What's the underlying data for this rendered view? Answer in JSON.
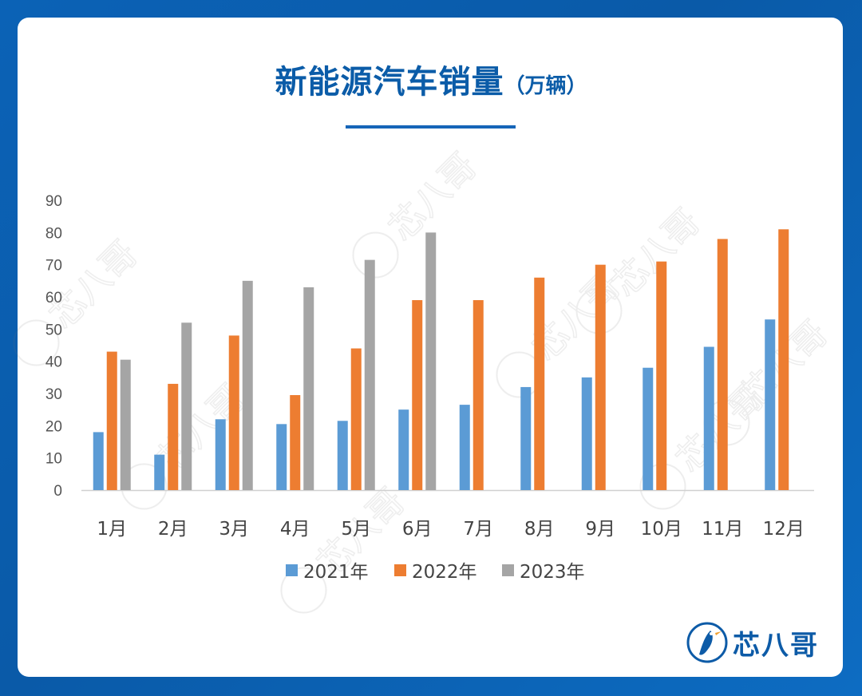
{
  "chart_data": {
    "type": "bar",
    "title": "新能源汽车销量",
    "subtitle": "（万辆）",
    "categories": [
      "1月",
      "2月",
      "3月",
      "4月",
      "5月",
      "6月",
      "7月",
      "8月",
      "9月",
      "10月",
      "11月",
      "12月"
    ],
    "series": [
      {
        "name": "2021年",
        "color": "#5b9bd5",
        "values": [
          18,
          11,
          22,
          20.5,
          21.5,
          25,
          26.5,
          32,
          35,
          38,
          44.5,
          53
        ]
      },
      {
        "name": "2022年",
        "color": "#ed7d31",
        "values": [
          43,
          33,
          48,
          29.5,
          44,
          59,
          59,
          66,
          70,
          71,
          78,
          81
        ]
      },
      {
        "name": "2023年",
        "color": "#a5a5a5",
        "values": [
          40.5,
          52,
          65,
          63,
          71.5,
          80,
          null,
          null,
          null,
          null,
          null,
          null
        ]
      }
    ],
    "y_ticks": [
      "0",
      "10",
      "20",
      "30",
      "40",
      "50",
      "60",
      "70",
      "80",
      "90"
    ],
    "ylim": [
      0,
      90
    ],
    "grid": false,
    "legend_position": "bottom"
  },
  "watermark_text": "芯八哥",
  "brand": {
    "name": "芯八哥",
    "color": "#0d5ba7"
  }
}
